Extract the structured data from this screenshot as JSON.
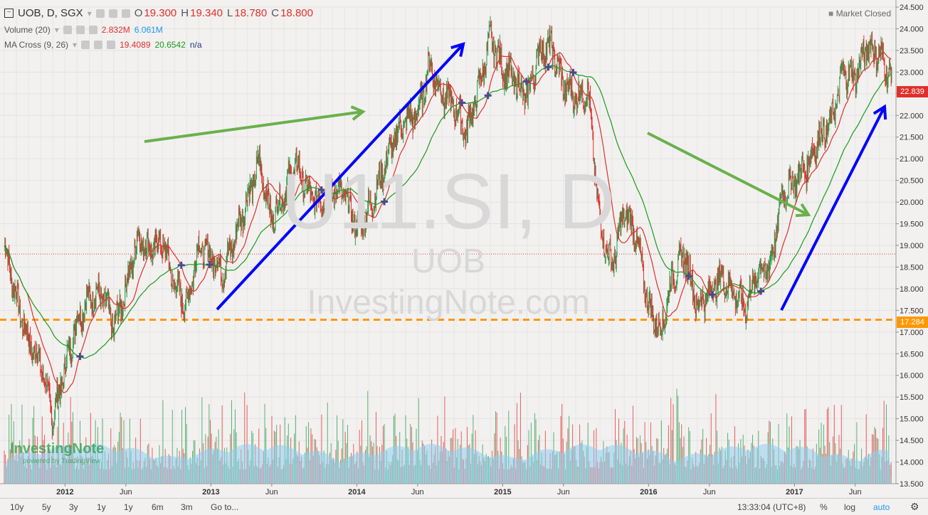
{
  "header": {
    "symbol_line": "UOB, D, SGX",
    "open_label": "O",
    "open": "19.300",
    "high_label": "H",
    "high": "19.340",
    "low_label": "L",
    "low": "18.780",
    "close_label": "C",
    "close": "18.800",
    "market_status": "Market Closed"
  },
  "indicators": {
    "volume_label": "Volume (20)",
    "volume_val1": "2.832M",
    "volume_val2": "6.061M",
    "ma_label": "MA Cross (9, 26)",
    "ma_val1": "19.4089",
    "ma_val2": "20.6542",
    "ma_val3": "n/a"
  },
  "watermark": {
    "symbol": "U11.SI, D",
    "name": "UOB",
    "site": "InvestingNote.com"
  },
  "logo": {
    "brand": "InvestingNote",
    "powered": "powered by TradingView"
  },
  "price_tags": {
    "last": "22.839",
    "support": "17.284"
  },
  "bottom_bar": {
    "ranges": [
      "10y",
      "5y",
      "3y",
      "1y",
      "1y",
      "6m",
      "3m"
    ],
    "goto": "Go to...",
    "time": "13:33:04 (UTC+8)",
    "percent": "%",
    "log": "log",
    "auto": "auto"
  },
  "colors": {
    "up": "#2a9a4a",
    "down": "#e0302b",
    "ma_fast": "#e0302b",
    "ma_slow": "#1a9a1a",
    "support_line": "#ff9800",
    "arrow_blue": "#0000ff",
    "arrow_green": "#6ab04c",
    "volume_ma": "#8fcdf0",
    "cross_marker": "#4a4a8a"
  },
  "chart_data": {
    "type": "candlestick",
    "title": "UOB, D, SGX",
    "ylim": [
      13.5,
      24.5
    ],
    "y_ticks": [
      "24.500",
      "24.000",
      "23.500",
      "23.000",
      "22.500",
      "22.000",
      "21.500",
      "21.000",
      "20.500",
      "20.000",
      "19.500",
      "19.000",
      "18.500",
      "18.000",
      "17.500",
      "17.000",
      "16.500",
      "16.000",
      "15.500",
      "15.000",
      "14.500",
      "14.000",
      "13.500"
    ],
    "x_labels": [
      "2012",
      "Jun",
      "2013",
      "Jun",
      "2014",
      "Jun",
      "2015",
      "Jun",
      "2016",
      "Jun",
      "2017",
      "Jun"
    ],
    "x_start": "2011-08",
    "x_end": "2017-09",
    "close_path": [
      {
        "date": "2011-08",
        "close": 19.0
      },
      {
        "date": "2011-09",
        "close": 17.8
      },
      {
        "date": "2011-10",
        "close": 16.8
      },
      {
        "date": "2011-11",
        "close": 16.3
      },
      {
        "date": "2011-12",
        "close": 15.0
      },
      {
        "date": "2012-01",
        "close": 16.2
      },
      {
        "date": "2012-02",
        "close": 17.3
      },
      {
        "date": "2012-03",
        "close": 17.8
      },
      {
        "date": "2012-04",
        "close": 17.9
      },
      {
        "date": "2012-05",
        "close": 17.1
      },
      {
        "date": "2012-06",
        "close": 18.0
      },
      {
        "date": "2012-07",
        "close": 19.2
      },
      {
        "date": "2012-08",
        "close": 18.9
      },
      {
        "date": "2012-09",
        "close": 19.1
      },
      {
        "date": "2012-10",
        "close": 18.1
      },
      {
        "date": "2012-11",
        "close": 17.6
      },
      {
        "date": "2012-12",
        "close": 19.0
      },
      {
        "date": "2013-01",
        "close": 18.8
      },
      {
        "date": "2013-02",
        "close": 18.4
      },
      {
        "date": "2013-03",
        "close": 19.2
      },
      {
        "date": "2013-04",
        "close": 20.1
      },
      {
        "date": "2013-05",
        "close": 20.9
      },
      {
        "date": "2013-06",
        "close": 19.6
      },
      {
        "date": "2013-07",
        "close": 20.2
      },
      {
        "date": "2013-08",
        "close": 20.9
      },
      {
        "date": "2013-09",
        "close": 20.2
      },
      {
        "date": "2013-10",
        "close": 20.0
      },
      {
        "date": "2013-11",
        "close": 20.3
      },
      {
        "date": "2013-12",
        "close": 20.2
      },
      {
        "date": "2014-01",
        "close": 19.4
      },
      {
        "date": "2014-02",
        "close": 19.8
      },
      {
        "date": "2014-03",
        "close": 20.6
      },
      {
        "date": "2014-04",
        "close": 21.4
      },
      {
        "date": "2014-05",
        "close": 21.9
      },
      {
        "date": "2014-06",
        "close": 22.0
      },
      {
        "date": "2014-07",
        "close": 23.2
      },
      {
        "date": "2014-08",
        "close": 22.5
      },
      {
        "date": "2014-09",
        "close": 22.2
      },
      {
        "date": "2014-10",
        "close": 21.6
      },
      {
        "date": "2014-11",
        "close": 22.6
      },
      {
        "date": "2014-12",
        "close": 23.8
      },
      {
        "date": "2015-01",
        "close": 23.1
      },
      {
        "date": "2015-02",
        "close": 22.8
      },
      {
        "date": "2015-03",
        "close": 22.4
      },
      {
        "date": "2015-04",
        "close": 23.5
      },
      {
        "date": "2015-05",
        "close": 23.6
      },
      {
        "date": "2015-06",
        "close": 22.7
      },
      {
        "date": "2015-07",
        "close": 22.4
      },
      {
        "date": "2015-08",
        "close": 22.6
      },
      {
        "date": "2015-09",
        "close": 19.5
      },
      {
        "date": "2015-10",
        "close": 18.5
      },
      {
        "date": "2015-11",
        "close": 19.8
      },
      {
        "date": "2015-12",
        "close": 19.2
      },
      {
        "date": "2016-01",
        "close": 17.6
      },
      {
        "date": "2016-02",
        "close": 17.0
      },
      {
        "date": "2016-03",
        "close": 18.3
      },
      {
        "date": "2016-04",
        "close": 18.8
      },
      {
        "date": "2016-05",
        "close": 17.6
      },
      {
        "date": "2016-06",
        "close": 17.9
      },
      {
        "date": "2016-07",
        "close": 18.3
      },
      {
        "date": "2016-08",
        "close": 17.9
      },
      {
        "date": "2016-09",
        "close": 17.6
      },
      {
        "date": "2016-10",
        "close": 18.4
      },
      {
        "date": "2016-11",
        "close": 18.5
      },
      {
        "date": "2016-12",
        "close": 20.2
      },
      {
        "date": "2017-01",
        "close": 20.5
      },
      {
        "date": "2017-02",
        "close": 20.8
      },
      {
        "date": "2017-03",
        "close": 21.5
      },
      {
        "date": "2017-04",
        "close": 21.8
      },
      {
        "date": "2017-05",
        "close": 23.0
      },
      {
        "date": "2017-06",
        "close": 22.9
      },
      {
        "date": "2017-07",
        "close": 23.6
      },
      {
        "date": "2017-08",
        "close": 23.4
      },
      {
        "date": "2017-09",
        "close": 22.84
      }
    ],
    "support_level": 17.284,
    "last_price": 22.839
  }
}
